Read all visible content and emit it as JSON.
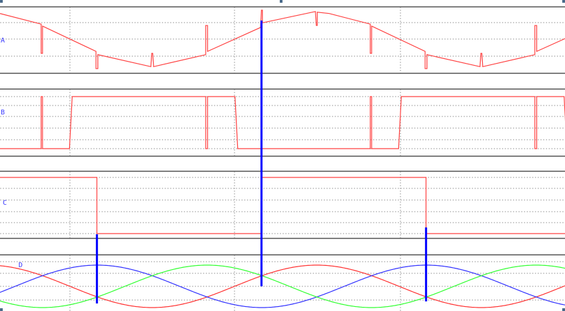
{
  "chart_data": {
    "type": "line",
    "x_unit_note": "",
    "colors": {
      "trace": "#ff4040",
      "cursor": "#0000ff",
      "phase_red": "#ff3030",
      "phase_blue": "#3030ff",
      "phase_green": "#30ff30",
      "grid": "#999999",
      "frame": "#555555"
    },
    "grid": true,
    "period_deg": 360,
    "x_range_deg": [
      0,
      618
    ],
    "panels": [
      {
        "label": "A",
        "series": [
          {
            "color": "#ff4040",
            "points": [
              [
                0,
                90
              ],
              [
                45,
                74
              ],
              [
                45,
                30
              ],
              [
                46.5,
                30
              ],
              [
                46.5,
                71
              ],
              [
                105,
                33
              ],
              [
                105,
                7
              ],
              [
                107,
                7
              ],
              [
                107,
                28
              ],
              [
                165,
                10
              ],
              [
                166,
                30
              ],
              [
                167,
                30
              ],
              [
                168,
                10
              ],
              [
                225,
                28
              ],
              [
                225,
                72
              ],
              [
                227,
                72
              ],
              [
                227,
                33
              ],
              [
                285,
                69
              ],
              [
                286,
                95
              ],
              [
                287,
                95
              ],
              [
                287,
                76
              ],
              [
                345,
                93
              ],
              [
                346,
                72
              ],
              [
                347,
                72
              ],
              [
                347,
                92
              ],
              [
                360,
                90
              ]
            ]
          }
        ]
      },
      {
        "label": "B",
        "series": [
          {
            "color": "#ff4040",
            "points": [
              [
                0,
                0
              ],
              [
                45,
                0
              ],
              [
                45,
                100
              ],
              [
                46.5,
                100
              ],
              [
                46.5,
                0
              ],
              [
                76,
                0
              ],
              [
                79,
                100
              ],
              [
                225,
                100
              ],
              [
                225,
                0
              ],
              [
                227,
                0
              ],
              [
                227,
                100
              ],
              [
                257,
                100
              ],
              [
                260,
                0
              ],
              [
                360,
                0
              ]
            ]
          }
        ]
      },
      {
        "label": "C",
        "series": [
          {
            "color": "#ff4040",
            "points": [
              [
                0,
                100
              ],
              [
                106,
                100
              ],
              [
                106,
                0
              ],
              [
                286,
                0
              ],
              [
                286,
                100
              ],
              [
                360,
                100
              ]
            ]
          }
        ]
      },
      {
        "label": "D",
        "sines": [
          {
            "color": "#ff3030",
            "peak_deg": -13.5
          },
          {
            "color": "#3030ff",
            "peak_deg": 106.5
          },
          {
            "color": "#30ff30",
            "peak_deg": 226.5
          }
        ]
      }
    ],
    "cursors_deg": [
      106,
      286,
      466
    ]
  }
}
